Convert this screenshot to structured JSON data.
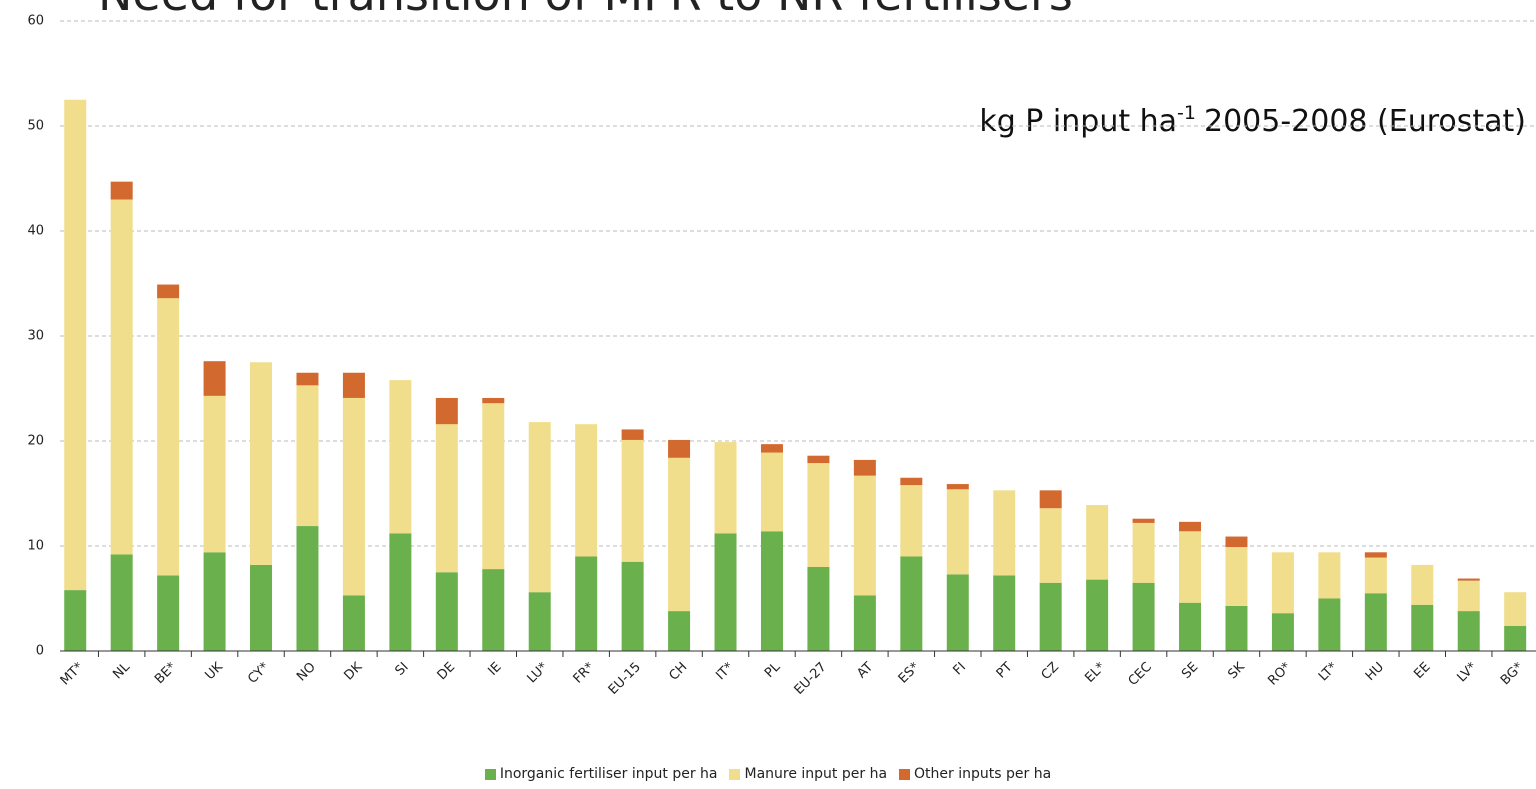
{
  "chart_data": {
    "type": "stacked_bar",
    "title": "Need for transition of MFR to NR fertilisers",
    "annotation": {
      "text": "kg P input ha",
      "superscript": "-1",
      "suffix": "2005-2008 (Eurostat)"
    },
    "categories": [
      "MT*",
      "NL",
      "BE*",
      "UK",
      "CY*",
      "NO",
      "DK",
      "SI",
      "DE",
      "IE",
      "LU*",
      "FR*",
      "EU-15",
      "CH",
      "IT*",
      "PL",
      "EU-27",
      "AT",
      "ES*",
      "FI",
      "PT",
      "CZ",
      "EL*",
      "CEC",
      "SE",
      "SK",
      "RO*",
      "LT*",
      "HU",
      "EE",
      "LV*",
      "BG*"
    ],
    "series": [
      {
        "name": "Inorganic fertiliser input per ha",
        "color": "#6ab04c",
        "values": [
          5.8,
          9.2,
          7.2,
          9.4,
          8.2,
          11.9,
          5.3,
          11.2,
          7.5,
          7.8,
          5.6,
          9.0,
          8.5,
          3.8,
          11.2,
          11.4,
          8.0,
          5.3,
          9.0,
          7.3,
          7.2,
          6.5,
          6.8,
          6.5,
          4.6,
          4.3,
          3.6,
          5.0,
          5.5,
          4.4,
          3.8,
          2.4
        ]
      },
      {
        "name": "Manure input per ha",
        "color": "#f0de8c",
        "values": [
          46.7,
          33.8,
          26.4,
          14.9,
          19.3,
          13.4,
          18.8,
          14.6,
          14.1,
          15.8,
          16.2,
          12.6,
          11.6,
          14.6,
          8.7,
          7.5,
          9.9,
          11.4,
          6.8,
          8.1,
          8.1,
          7.1,
          7.1,
          5.7,
          6.8,
          5.6,
          5.8,
          4.4,
          3.4,
          3.8,
          2.9,
          3.2
        ]
      },
      {
        "name": "Other inputs per ha",
        "color": "#d2692e",
        "values": [
          0,
          1.7,
          1.3,
          3.3,
          0,
          1.2,
          2.4,
          0,
          2.5,
          0.5,
          0,
          0,
          1.0,
          1.7,
          0,
          0.8,
          0.7,
          1.5,
          0.7,
          0.5,
          0,
          1.7,
          0,
          0.4,
          0.9,
          1.0,
          0,
          0,
          0.5,
          0,
          0.2,
          0
        ]
      }
    ],
    "ylim": [
      0,
      60
    ],
    "yticks": [
      0,
      10,
      20,
      30,
      40,
      50,
      60
    ],
    "grid": true,
    "legend": "bottom"
  }
}
